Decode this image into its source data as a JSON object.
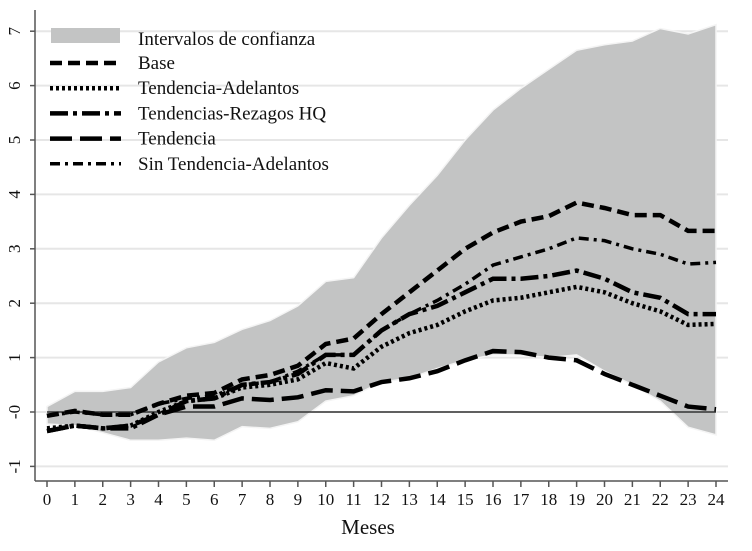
{
  "chart_data": {
    "type": "line",
    "xlabel": "Meses",
    "ylabel": "",
    "xlim": [
      0,
      24
    ],
    "ylim": [
      -1.2,
      7.3
    ],
    "x": [
      0,
      1,
      2,
      3,
      4,
      5,
      6,
      7,
      8,
      9,
      10,
      11,
      12,
      13,
      14,
      15,
      16,
      17,
      18,
      19,
      20,
      21,
      22,
      23,
      24
    ],
    "x_ticks": [
      "0",
      "1",
      "2",
      "3",
      "4",
      "5",
      "6",
      "7",
      "8",
      "9",
      "10",
      "11",
      "12",
      "13",
      "14",
      "15",
      "16",
      "17",
      "18",
      "19",
      "20",
      "21",
      "22",
      "23",
      "24"
    ],
    "y_ticks": [
      {
        "v": -1,
        "label": "-1"
      },
      {
        "v": 0,
        "label": "-0"
      },
      {
        "v": 1,
        "label": "1"
      },
      {
        "v": 2,
        "label": "2"
      },
      {
        "v": 3,
        "label": "3"
      },
      {
        "v": 4,
        "label": "4"
      },
      {
        "v": 5,
        "label": "5"
      },
      {
        "v": 6,
        "label": "6"
      },
      {
        "v": 7,
        "label": "7"
      }
    ],
    "grid": true,
    "reference_line": 0,
    "legend_placement": "top-left",
    "band": {
      "name": "Intervalos de confianza",
      "color": "#c3c4c4",
      "upper": [
        0.1,
        0.38,
        0.38,
        0.45,
        0.92,
        1.18,
        1.28,
        1.52,
        1.68,
        1.95,
        2.4,
        2.47,
        3.2,
        3.8,
        4.35,
        5.0,
        5.55,
        5.95,
        6.3,
        6.65,
        6.75,
        6.82,
        7.05,
        6.95,
        7.12
      ],
      "lower": [
        -0.22,
        -0.25,
        -0.38,
        -0.52,
        -0.52,
        -0.48,
        -0.52,
        -0.27,
        -0.3,
        -0.18,
        0.2,
        0.3,
        0.55,
        0.62,
        0.8,
        0.95,
        1.05,
        1.05,
        1.0,
        1.05,
        0.75,
        0.5,
        0.2,
        -0.28,
        -0.42
      ]
    },
    "series": [
      {
        "name": "Base",
        "style": "short-dash",
        "values": [
          -0.07,
          0.02,
          -0.05,
          -0.05,
          0.15,
          0.3,
          0.35,
          0.6,
          0.68,
          0.85,
          1.25,
          1.35,
          1.8,
          2.2,
          2.6,
          3.0,
          3.3,
          3.5,
          3.6,
          3.85,
          3.75,
          3.62,
          3.62,
          3.33,
          3.33
        ]
      },
      {
        "name": "Tendencia-Adelantos",
        "style": "dot",
        "values": [
          -0.3,
          -0.25,
          -0.3,
          -0.25,
          0.0,
          0.2,
          0.25,
          0.45,
          0.5,
          0.6,
          0.9,
          0.8,
          1.2,
          1.45,
          1.6,
          1.85,
          2.05,
          2.1,
          2.2,
          2.3,
          2.2,
          2.0,
          1.85,
          1.6,
          1.62
        ]
      },
      {
        "name": "Tendencias-Rezagos HQ",
        "style": "long-dash-dot",
        "values": [
          -0.35,
          -0.25,
          -0.3,
          -0.3,
          -0.05,
          0.2,
          0.25,
          0.5,
          0.55,
          0.7,
          1.05,
          1.05,
          1.5,
          1.8,
          1.95,
          2.2,
          2.45,
          2.45,
          2.5,
          2.6,
          2.45,
          2.2,
          2.1,
          1.8,
          1.8
        ]
      },
      {
        "name": "Tendencia",
        "style": "long-dash",
        "values": [
          -0.35,
          -0.25,
          -0.3,
          -0.25,
          -0.05,
          0.1,
          0.1,
          0.25,
          0.22,
          0.27,
          0.4,
          0.38,
          0.55,
          0.62,
          0.75,
          0.95,
          1.12,
          1.1,
          1.0,
          0.95,
          0.7,
          0.5,
          0.3,
          0.1,
          0.05
        ]
      },
      {
        "name": "Sin Tendencia-Adelantos",
        "style": "dash-dot",
        "values": [
          -0.07,
          0.0,
          -0.05,
          -0.05,
          0.15,
          0.25,
          0.3,
          0.5,
          0.55,
          0.75,
          1.05,
          1.05,
          1.5,
          1.8,
          2.05,
          2.35,
          2.7,
          2.85,
          3.0,
          3.2,
          3.15,
          3.0,
          2.9,
          2.72,
          2.75
        ]
      }
    ]
  }
}
